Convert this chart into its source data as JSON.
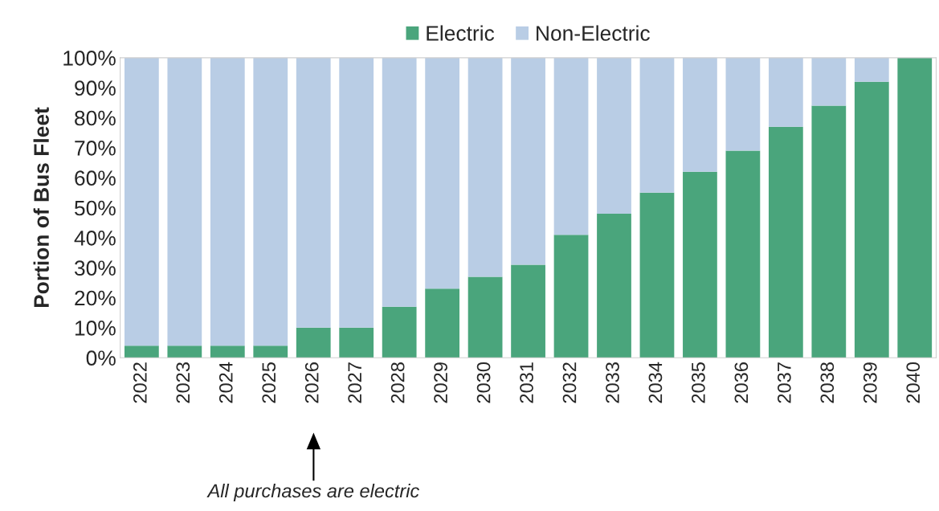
{
  "chart_data": {
    "type": "bar",
    "stacked": true,
    "ylabel": "Portion of Bus Fleet",
    "categories": [
      "2022",
      "2023",
      "2024",
      "2025",
      "2026",
      "2027",
      "2028",
      "2029",
      "2030",
      "2031",
      "2032",
      "2033",
      "2034",
      "2035",
      "2036",
      "2037",
      "2038",
      "2039",
      "2040"
    ],
    "series": [
      {
        "name": "Electric",
        "color": "#4aa57c",
        "values": [
          4,
          4,
          4,
          4,
          10,
          10,
          17,
          23,
          27,
          31,
          41,
          48,
          55,
          62,
          69,
          77,
          84,
          92,
          100
        ]
      },
      {
        "name": "Non-Electric",
        "color": "#b9cde5",
        "values": [
          96,
          96,
          96,
          96,
          90,
          90,
          83,
          77,
          73,
          69,
          59,
          52,
          45,
          38,
          31,
          23,
          16,
          8,
          0
        ]
      }
    ],
    "ylim": [
      0,
      100
    ],
    "yticks": [
      {
        "value": 0,
        "label": "0%"
      },
      {
        "value": 10,
        "label": "10%"
      },
      {
        "value": 20,
        "label": "20%"
      },
      {
        "value": 30,
        "label": "30%"
      },
      {
        "value": 40,
        "label": "40%"
      },
      {
        "value": 50,
        "label": "50%"
      },
      {
        "value": 60,
        "label": "60%"
      },
      {
        "value": 70,
        "label": "70%"
      },
      {
        "value": 80,
        "label": "80%"
      },
      {
        "value": 90,
        "label": "90%"
      },
      {
        "value": 100,
        "label": "100%"
      }
    ],
    "legend": "top",
    "annotations": [
      "All purchases are electric"
    ]
  }
}
